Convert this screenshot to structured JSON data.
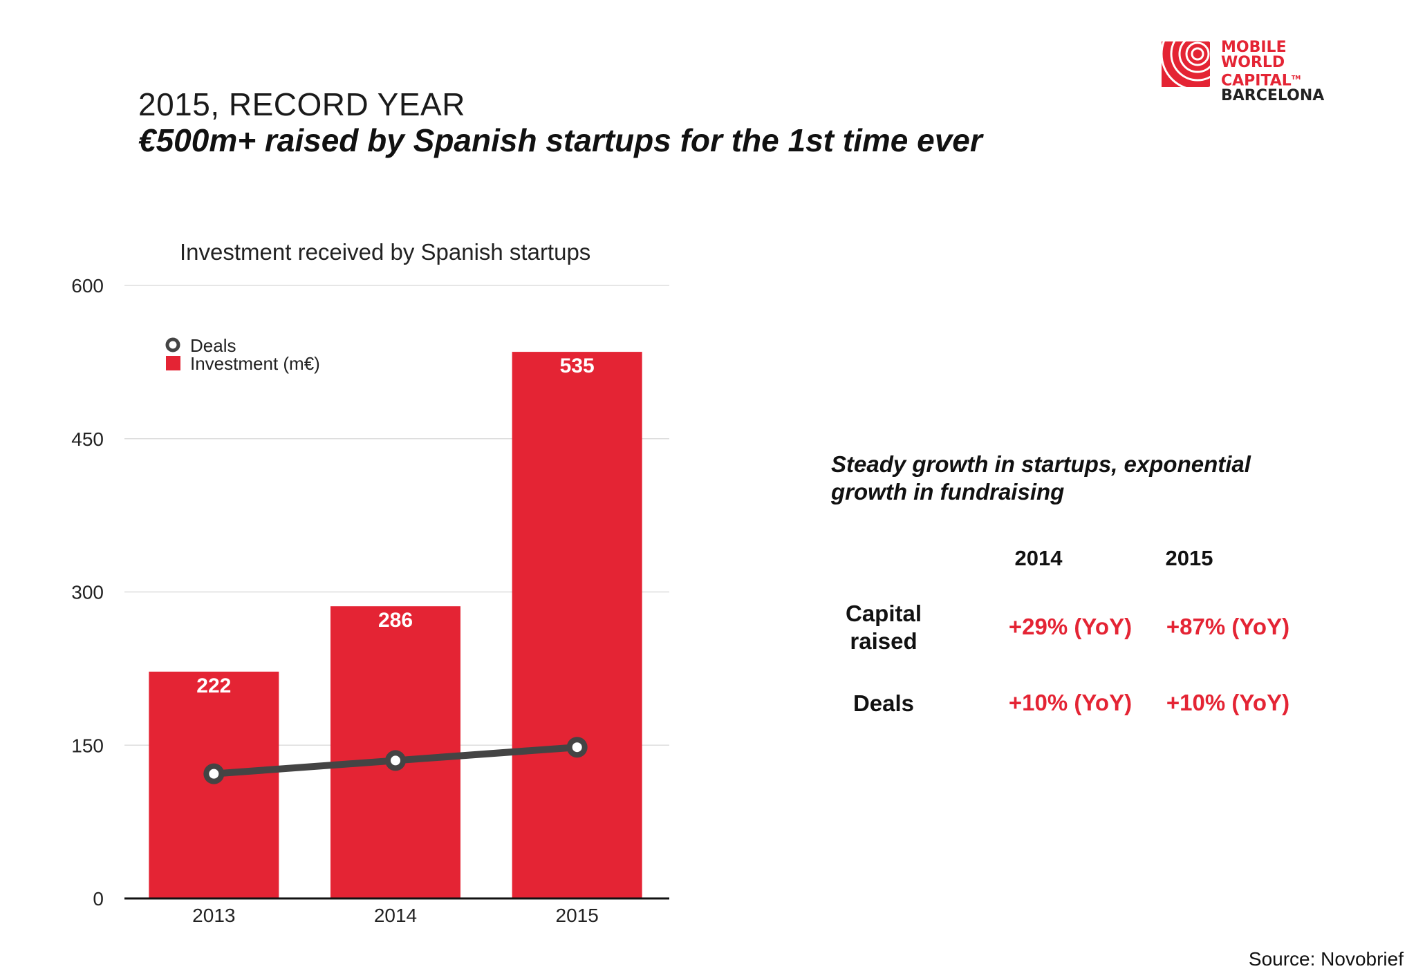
{
  "logo": {
    "line1": "MOBILE",
    "line2": "WORLD CAPITAL",
    "tm": "TM",
    "line3": "BARCELONA"
  },
  "kicker": "2015, RECORD YEAR",
  "headline": "€500m+ raised by Spanish startups for the 1st time ever",
  "chart_data": {
    "type": "bar",
    "title": "Investment received by Spanish startups",
    "categories": [
      "2013",
      "2014",
      "2015"
    ],
    "series": [
      {
        "name": "Investment (m€)",
        "type": "bar",
        "values": [
          222,
          286,
          535
        ],
        "color": "#e42434"
      },
      {
        "name": "Deals",
        "type": "line",
        "values": [
          122,
          135,
          148
        ],
        "color": "#444444"
      }
    ],
    "y_ticks": [
      "0",
      "150",
      "300",
      "450",
      "600"
    ],
    "ylim": [
      0,
      600
    ],
    "grid": true,
    "legend": "top-left",
    "data_labels": [
      "222",
      "286",
      "535"
    ]
  },
  "right_panel": {
    "title": "Steady growth in startups, exponential growth in fundraising",
    "columns": [
      "2014",
      "2015"
    ],
    "rows": [
      {
        "label": "Capital raised",
        "values": [
          "+29% (YoY)",
          "+87% (YoY)"
        ]
      },
      {
        "label": "Deals",
        "values": [
          "+10% (YoY)",
          "+10% (YoY)"
        ]
      }
    ]
  },
  "source": "Source: Novobrief",
  "colors": {
    "accent": "#e42434",
    "line": "#444444",
    "grid": "#dddddd"
  }
}
